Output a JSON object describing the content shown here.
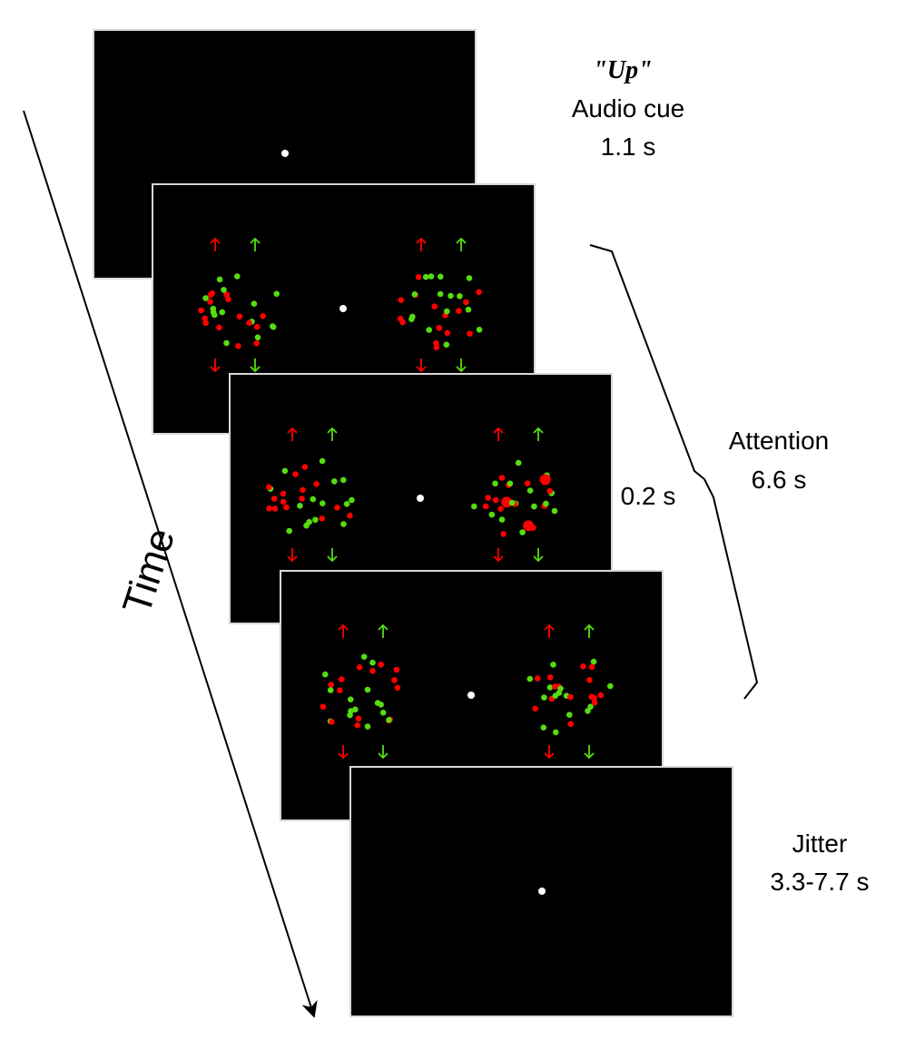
{
  "colors": {
    "screen": "#000000",
    "screen_border": "#d8d8d8",
    "fixation": "#ffffff",
    "dot_red": "#ff0000",
    "dot_green": "#55dd11",
    "text": "#000000",
    "line": "#000000"
  },
  "icons": {
    "arrow_up": "arrow-up-icon",
    "arrow_down": "arrow-down-icon"
  },
  "timeline": {
    "label": "Time"
  },
  "phases": {
    "cue": {
      "word": "\"Up\"",
      "name": "Audio cue",
      "duration": "1.1 s"
    },
    "attention": {
      "name": "Attention",
      "duration": "6.6 s"
    },
    "frame": {
      "duration": "0.2 s"
    },
    "jitter": {
      "name": "Jitter",
      "duration": "3.3-7.7 s"
    }
  }
}
